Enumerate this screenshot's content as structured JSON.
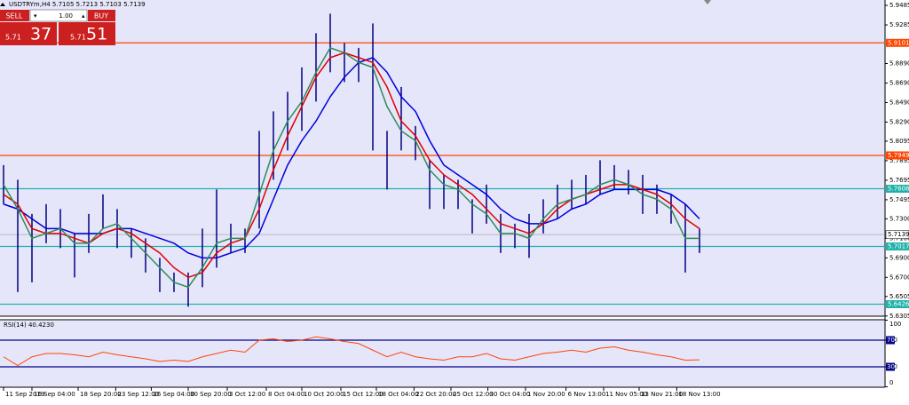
{
  "header": {
    "title": "USDTRYm,H4 5.7105 5.7213 5.7103 5.7139"
  },
  "trade_panel": {
    "sell": "SELL",
    "lot": "1.00",
    "buy": "BUY",
    "sell_big": "5.71",
    "sell_small": "37",
    "buy_big": "5.71",
    "buy_small": "51"
  },
  "chart_data": [
    {
      "type": "hilo",
      "ylim": [
        5.6303,
        5.954
      ],
      "yticks": [
        {
          "value": 5.9485,
          "label": "5.9485"
        },
        {
          "value": 5.9285,
          "label": "5.9285"
        },
        {
          "value": 5.889,
          "label": "5.8890"
        },
        {
          "value": 5.869,
          "label": "5.8690"
        },
        {
          "value": 5.849,
          "label": "5.8490"
        },
        {
          "value": 5.829,
          "label": "5.8290"
        },
        {
          "value": 5.8095,
          "label": "5.8095"
        },
        {
          "value": 5.7895,
          "label": "5.7895"
        },
        {
          "value": 5.7695,
          "label": "5.7695"
        },
        {
          "value": 5.7495,
          "label": "5.7495"
        },
        {
          "value": 5.73,
          "label": "5.7300"
        },
        {
          "value": 5.71,
          "label": "5.7100"
        },
        {
          "value": 5.69,
          "label": "5.6900"
        },
        {
          "value": 5.67,
          "label": "5.6700"
        },
        {
          "value": 5.6505,
          "label": "5.6505"
        },
        {
          "value": 5.6305,
          "label": "5.6305"
        }
      ],
      "xticks": [
        {
          "value": 0,
          "label": "11 Sep 2019"
        },
        {
          "value": 2,
          "label": "16 Sep 04:00"
        },
        {
          "value": 5.25,
          "label": "18 Sep 20:00"
        },
        {
          "value": 7.9,
          "label": "23 Sep 12:00"
        },
        {
          "value": 10.4,
          "label": "26 Sep 04:00"
        },
        {
          "value": 13,
          "label": "30 Sep 20:00"
        },
        {
          "value": 15.75,
          "label": "3 Oct 12:00"
        },
        {
          "value": 18.5,
          "label": "8 Oct 04:00"
        },
        {
          "value": 21,
          "label": "10 Oct 20:00"
        },
        {
          "value": 23.75,
          "label": "15 Oct 12:00"
        },
        {
          "value": 26.25,
          "label": "18 Oct 04:00"
        },
        {
          "value": 28.9,
          "label": "22 Oct 20:00"
        },
        {
          "value": 31.5,
          "label": "25 Oct 12:00"
        },
        {
          "value": 34.1,
          "label": "30 Oct 04:00"
        },
        {
          "value": 36.75,
          "label": "1 Nov 20:00"
        },
        {
          "value": 39.6,
          "label": "6 Nov 13:00"
        },
        {
          "value": 42.25,
          "label": "11 Nov 05:00"
        },
        {
          "value": 44.75,
          "label": "13 Nov 21:00"
        },
        {
          "value": 47.4,
          "label": "18 Nov 13:00"
        }
      ],
      "color": "#000080",
      "high": [
        5.785,
        5.77,
        5.735,
        5.745,
        5.74,
        5.715,
        5.735,
        5.755,
        5.74,
        5.72,
        5.71,
        5.69,
        5.675,
        5.675,
        5.72,
        5.76,
        5.725,
        5.72,
        5.82,
        5.84,
        5.86,
        5.885,
        5.92,
        5.94,
        5.91,
        5.905,
        5.93,
        5.82,
        5.865,
        5.825,
        5.79,
        5.775,
        5.77,
        5.75,
        5.765,
        5.735,
        5.725,
        5.735,
        5.75,
        5.765,
        5.77,
        5.775,
        5.79,
        5.785,
        5.78,
        5.775,
        5.765,
        5.755,
        5.745,
        5.72
      ],
      "low": [
        5.745,
        5.655,
        5.665,
        5.705,
        5.7,
        5.67,
        5.695,
        5.72,
        5.7,
        5.69,
        5.675,
        5.655,
        5.655,
        5.64,
        5.66,
        5.68,
        5.695,
        5.695,
        5.72,
        5.77,
        5.8,
        5.82,
        5.85,
        5.88,
        5.87,
        5.87,
        5.8,
        5.76,
        5.8,
        5.79,
        5.74,
        5.74,
        5.74,
        5.715,
        5.725,
        5.695,
        5.7,
        5.69,
        5.715,
        5.73,
        5.74,
        5.745,
        5.755,
        5.76,
        5.755,
        5.735,
        5.735,
        5.725,
        5.675,
        5.695
      ],
      "series": [
        {
          "color": "#0000dd",
          "values": [
            5.745,
            5.74,
            5.73,
            5.72,
            5.72,
            5.715,
            5.715,
            5.715,
            5.72,
            5.72,
            5.715,
            5.71,
            5.705,
            5.695,
            5.69,
            5.69,
            5.695,
            5.7,
            5.715,
            5.75,
            5.785,
            5.81,
            5.83,
            5.855,
            5.875,
            5.89,
            5.895,
            5.88,
            5.855,
            5.84,
            5.81,
            5.785,
            5.775,
            5.765,
            5.755,
            5.74,
            5.73,
            5.725,
            5.725,
            5.73,
            5.74,
            5.745,
            5.755,
            5.76,
            5.76,
            5.76,
            5.76,
            5.755,
            5.745,
            5.73
          ]
        },
        {
          "color": "#e00000",
          "values": [
            5.755,
            5.745,
            5.72,
            5.715,
            5.715,
            5.71,
            5.705,
            5.715,
            5.72,
            5.715,
            5.705,
            5.695,
            5.68,
            5.67,
            5.675,
            5.695,
            5.705,
            5.71,
            5.74,
            5.78,
            5.815,
            5.845,
            5.875,
            5.895,
            5.9,
            5.895,
            5.89,
            5.865,
            5.83,
            5.815,
            5.79,
            5.775,
            5.765,
            5.755,
            5.74,
            5.725,
            5.72,
            5.715,
            5.725,
            5.74,
            5.75,
            5.755,
            5.76,
            5.765,
            5.765,
            5.76,
            5.755,
            5.745,
            5.73,
            5.72
          ]
        },
        {
          "color": "#2e8b57",
          "values": [
            5.765,
            5.74,
            5.71,
            5.715,
            5.72,
            5.705,
            5.705,
            5.72,
            5.725,
            5.71,
            5.695,
            5.68,
            5.665,
            5.66,
            5.68,
            5.705,
            5.71,
            5.71,
            5.755,
            5.8,
            5.83,
            5.85,
            5.88,
            5.905,
            5.9,
            5.89,
            5.885,
            5.845,
            5.82,
            5.81,
            5.78,
            5.765,
            5.76,
            5.745,
            5.735,
            5.715,
            5.715,
            5.71,
            5.73,
            5.745,
            5.75,
            5.755,
            5.765,
            5.77,
            5.765,
            5.755,
            5.75,
            5.74,
            5.71,
            5.71
          ]
        }
      ],
      "levels": [
        {
          "value": 5.9101,
          "color": "#ff4500"
        },
        {
          "value": 5.7949,
          "color": "#ff4500"
        },
        {
          "value": 5.7608,
          "color": "#20b2aa"
        },
        {
          "value": 5.7017,
          "color": "#20b2aa"
        },
        {
          "value": 5.6426,
          "color": "#20b2aa"
        }
      ],
      "last": 5.7139
    },
    {
      "type": "line",
      "title": "RSI(14) 40.4230",
      "ylim": [
        0,
        100
      ],
      "yticks": [
        0,
        30,
        70,
        100
      ],
      "levels": [
        30,
        70
      ],
      "color": "#ff4500",
      "values": [
        45,
        32,
        45,
        50,
        50,
        48,
        45,
        52,
        48,
        45,
        42,
        38,
        40,
        38,
        45,
        50,
        55,
        52,
        70,
        72,
        68,
        70,
        75,
        72,
        68,
        65,
        55,
        45,
        52,
        45,
        42,
        40,
        45,
        45,
        50,
        42,
        40,
        45,
        50,
        52,
        55,
        52,
        58,
        60,
        55,
        52,
        48,
        45,
        40,
        40.423
      ]
    }
  ]
}
